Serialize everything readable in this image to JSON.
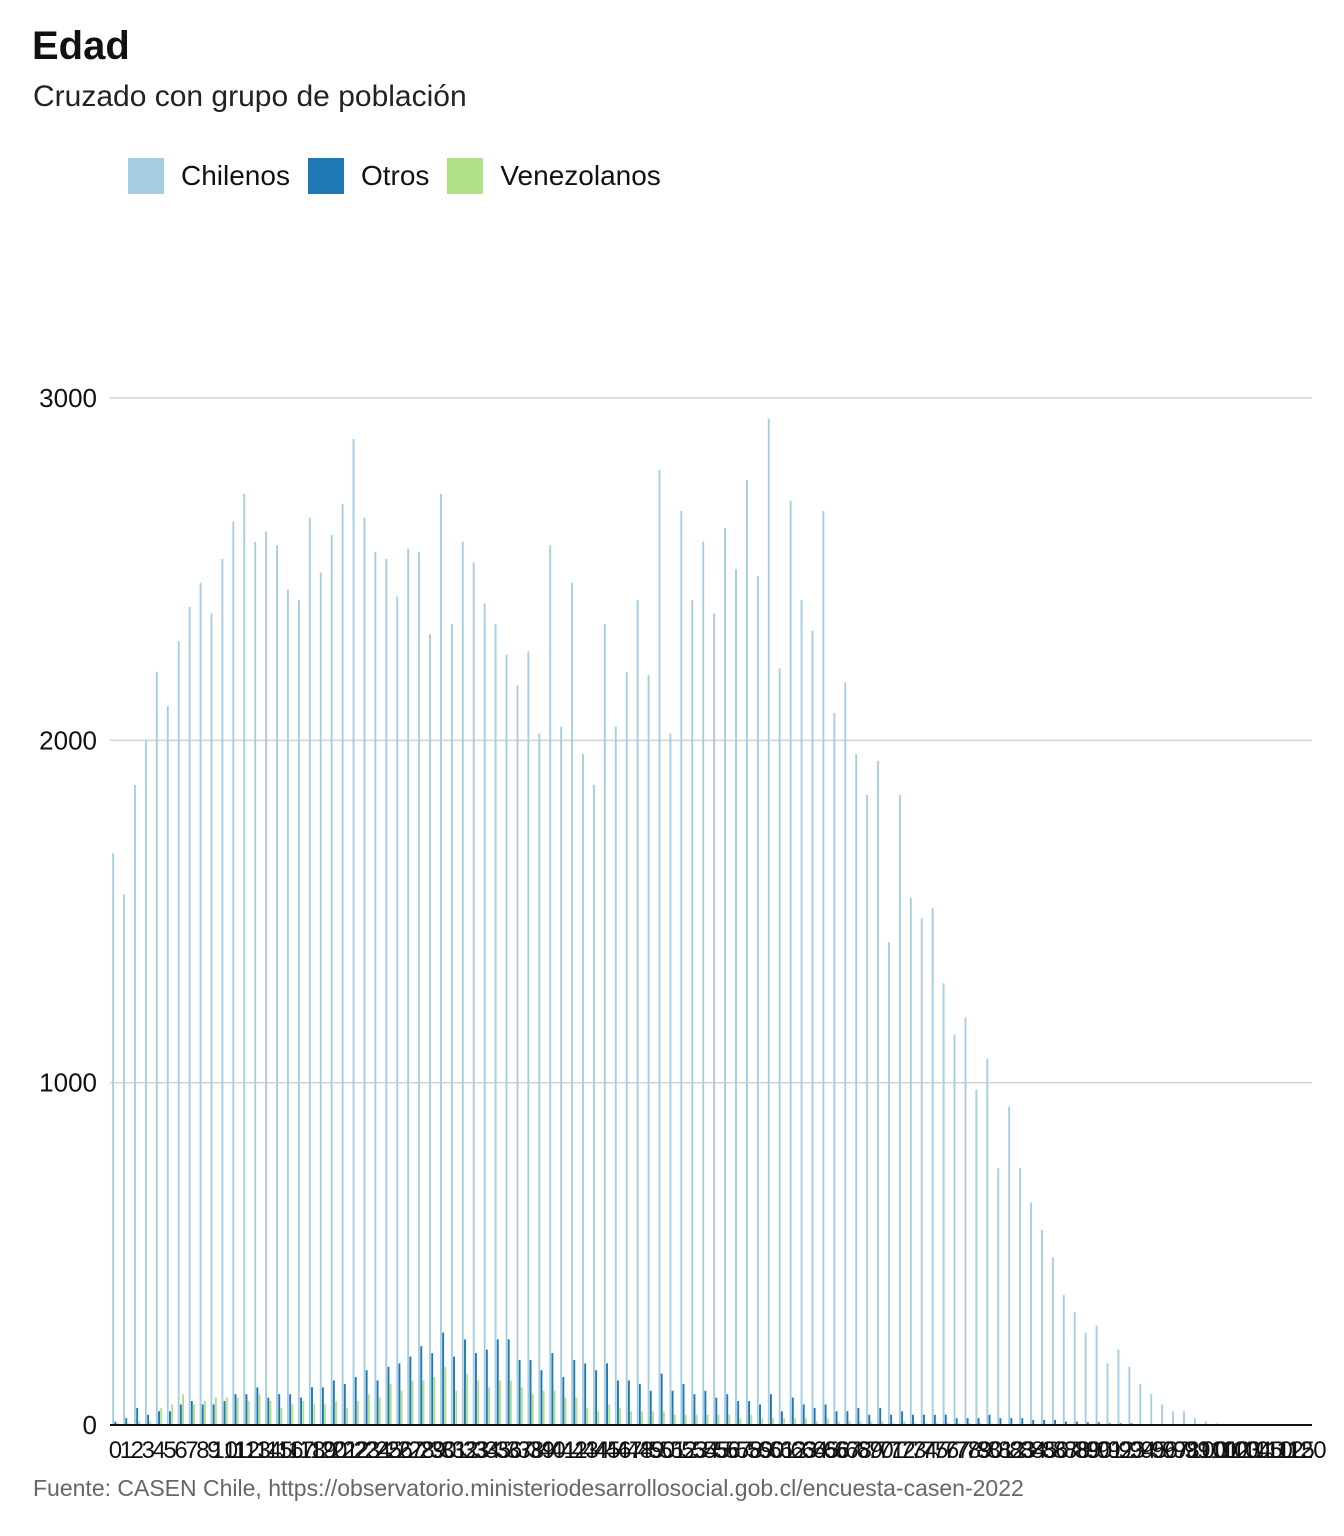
{
  "title": "Edad",
  "subtitle": "Cruzado con grupo de población",
  "source": "Fuente: CASEN Chile, https://observatorio.ministeriodesarrollosocial.gob.cl/encuesta-casen-2022",
  "legend": [
    {
      "name": "Chilenos",
      "color": "#a6cee3"
    },
    {
      "name": "Otros",
      "color": "#1f78b4"
    },
    {
      "name": "Venezolanos",
      "color": "#b2df8a"
    }
  ],
  "chart_data": {
    "type": "bar",
    "title": "Edad",
    "subtitle": "Cruzado con grupo de población",
    "xlabel": "",
    "ylabel": "",
    "ylim": [
      0,
      3000
    ],
    "yticks": [
      0,
      1000,
      2000,
      3000
    ],
    "grid": true,
    "legend_position": "top-left",
    "categories": [
      "0",
      "1",
      "2",
      "3",
      "4",
      "5",
      "6",
      "7",
      "8",
      "9",
      "10",
      "11",
      "12",
      "13",
      "14",
      "15",
      "16",
      "17",
      "18",
      "19",
      "20",
      "21",
      "22",
      "23",
      "24",
      "25",
      "26",
      "27",
      "28",
      "29",
      "30",
      "31",
      "32",
      "33",
      "34",
      "35",
      "36",
      "37",
      "38",
      "39",
      "40",
      "41",
      "42",
      "43",
      "44",
      "45",
      "46",
      "47",
      "48",
      "49",
      "50",
      "51",
      "52",
      "53",
      "54",
      "55",
      "56",
      "57",
      "58",
      "59",
      "60",
      "61",
      "62",
      "63",
      "64",
      "65",
      "66",
      "67",
      "68",
      "69",
      "70",
      "71",
      "72",
      "73",
      "74",
      "75",
      "76",
      "77",
      "78",
      "79",
      "80",
      "81",
      "82",
      "83",
      "84",
      "85",
      "86",
      "87",
      "88",
      "89",
      "90",
      "91",
      "92",
      "93",
      "94",
      "95",
      "96",
      "97",
      "98",
      "99",
      "100",
      "101",
      "102",
      "103",
      "104",
      "105",
      "110",
      "112",
      "115",
      "120"
    ],
    "series": [
      {
        "name": "Chilenos",
        "color": "#a6cee3",
        "values": [
          1670,
          1550,
          1870,
          2000,
          2200,
          2100,
          2290,
          2390,
          2460,
          2370,
          2530,
          2640,
          2720,
          2580,
          2610,
          2570,
          2440,
          2410,
          2650,
          2490,
          2600,
          2690,
          2880,
          2650,
          2550,
          2530,
          2420,
          2560,
          2550,
          2310,
          2720,
          2340,
          2580,
          2520,
          2400,
          2340,
          2250,
          2160,
          2260,
          2020,
          2570,
          2040,
          2460,
          1960,
          1870,
          2340,
          2040,
          2200,
          2410,
          2190,
          2790,
          2020,
          2670,
          2410,
          2580,
          2370,
          2620,
          2500,
          2760,
          2480,
          2940,
          2210,
          2700,
          2410,
          2320,
          2670,
          2080,
          2170,
          1960,
          1840,
          1940,
          1410,
          1840,
          1540,
          1480,
          1510,
          1290,
          1140,
          1190,
          980,
          1070,
          750,
          930,
          750,
          650,
          570,
          490,
          380,
          330,
          270,
          290,
          180,
          220,
          170,
          120,
          90,
          60,
          40,
          40,
          20,
          10,
          5,
          3,
          2,
          2,
          2,
          2,
          2,
          2,
          2
        ]
      },
      {
        "name": "Otros",
        "color": "#1f78b4",
        "values": [
          10,
          20,
          50,
          30,
          40,
          40,
          60,
          70,
          60,
          60,
          70,
          90,
          90,
          110,
          80,
          90,
          90,
          80,
          110,
          110,
          130,
          120,
          140,
          160,
          130,
          170,
          180,
          200,
          230,
          210,
          270,
          200,
          250,
          210,
          220,
          250,
          250,
          190,
          190,
          160,
          210,
          140,
          190,
          180,
          160,
          180,
          130,
          130,
          120,
          100,
          150,
          100,
          120,
          90,
          100,
          80,
          90,
          70,
          70,
          60,
          90,
          40,
          80,
          60,
          50,
          60,
          40,
          40,
          50,
          30,
          50,
          30,
          40,
          30,
          30,
          30,
          30,
          20,
          20,
          20,
          30,
          20,
          20,
          20,
          15,
          15,
          15,
          10,
          10,
          8,
          8,
          5,
          5,
          5,
          3,
          3,
          2,
          2,
          2,
          2,
          1,
          1,
          1,
          1,
          1,
          1,
          1,
          1,
          1,
          1
        ]
      },
      {
        "name": "Venezolanos",
        "color": "#b2df8a",
        "values": [
          5,
          5,
          10,
          10,
          50,
          60,
          90,
          60,
          70,
          80,
          80,
          80,
          70,
          90,
          70,
          50,
          60,
          70,
          60,
          60,
          70,
          50,
          70,
          90,
          80,
          120,
          100,
          130,
          130,
          140,
          170,
          100,
          150,
          130,
          110,
          130,
          130,
          110,
          90,
          100,
          100,
          80,
          80,
          50,
          40,
          60,
          50,
          40,
          40,
          40,
          40,
          30,
          30,
          30,
          30,
          30,
          30,
          20,
          30,
          20,
          20,
          20,
          20,
          20,
          10,
          20,
          10,
          10,
          10,
          10,
          10,
          5,
          10,
          5,
          5,
          5,
          5,
          5,
          5,
          5,
          5,
          3,
          3,
          3,
          3,
          2,
          2,
          2,
          2,
          2,
          2,
          1,
          1,
          1,
          1,
          1,
          1,
          1,
          1,
          1,
          1,
          1,
          1,
          1,
          1,
          1,
          1,
          1,
          1,
          1
        ]
      }
    ]
  }
}
